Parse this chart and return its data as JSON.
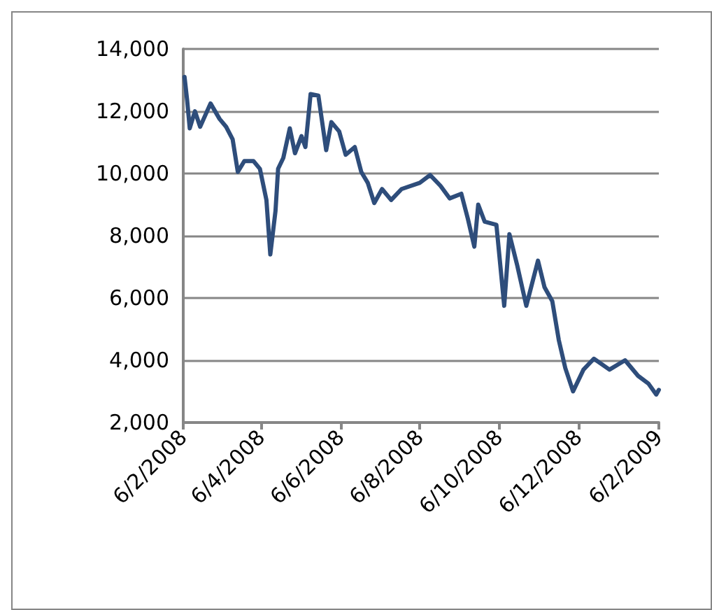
{
  "chart_data": {
    "type": "line",
    "x": [
      "2008-02-07",
      "2008-02-09",
      "2008-02-11",
      "2008-02-15",
      "2008-02-19",
      "2008-02-27",
      "2008-03-05",
      "2008-03-10",
      "2008-03-15",
      "2008-03-19",
      "2008-03-24",
      "2008-03-31",
      "2008-04-05",
      "2008-04-10",
      "2008-04-13",
      "2008-04-17",
      "2008-04-19",
      "2008-04-23",
      "2008-04-28",
      "2008-05-02",
      "2008-05-07",
      "2008-05-10",
      "2008-05-14",
      "2008-05-20",
      "2008-05-26",
      "2008-05-30",
      "2008-06-05",
      "2008-06-10",
      "2008-06-17",
      "2008-06-22",
      "2008-06-27",
      "2008-07-02",
      "2008-07-08",
      "2008-07-15",
      "2008-07-23",
      "2008-08-06",
      "2008-08-14",
      "2008-08-22",
      "2008-08-29",
      "2008-09-07",
      "2008-09-12",
      "2008-09-17",
      "2008-09-20",
      "2008-09-25",
      "2008-10-04",
      "2008-10-10",
      "2008-10-14",
      "2008-10-20",
      "2008-10-27",
      "2008-11-05",
      "2008-11-10",
      "2008-11-16",
      "2008-11-21",
      "2008-11-26",
      "2008-12-02",
      "2008-12-10",
      "2008-12-18",
      "2008-12-30",
      "2009-01-11",
      "2009-01-21",
      "2009-01-29",
      "2009-02-04",
      "2009-02-06"
    ],
    "series": [
      {
        "color": "#2e4d7b",
        "values": [
          13100,
          12350,
          11450,
          12000,
          11500,
          12250,
          11750,
          11500,
          11100,
          10050,
          10400,
          10400,
          10150,
          9150,
          7400,
          8800,
          10150,
          10500,
          11450,
          10650,
          11200,
          10850,
          12550,
          12500,
          10750,
          11650,
          11350,
          10600,
          10850,
          10050,
          9700,
          9050,
          9500,
          9150,
          9500,
          9700,
          9950,
          9600,
          9200,
          9350,
          8550,
          7650,
          9000,
          8450,
          8350,
          5750,
          8050,
          7050,
          5750,
          7200,
          6350,
          5900,
          4650,
          3750,
          3000,
          3700,
          4050,
          3700,
          4000,
          3500,
          3250,
          2900,
          3050
        ]
      }
    ],
    "xlim": [
      "2008-02-06",
      "2009-02-06"
    ],
    "xticks": [
      {
        "value": "2008-02-06",
        "label": "6/2/2008"
      },
      {
        "value": "2008-04-06",
        "label": "6/4/2008"
      },
      {
        "value": "2008-06-06",
        "label": "6/6/2008"
      },
      {
        "value": "2008-08-06",
        "label": "6/8/2008"
      },
      {
        "value": "2008-10-06",
        "label": "6/10/2008"
      },
      {
        "value": "2008-12-06",
        "label": "6/12/2008"
      },
      {
        "value": "2009-02-06",
        "label": "6/2/2009"
      }
    ],
    "ylim": [
      2000,
      14000
    ],
    "yticks": [
      {
        "value": 2000,
        "label": "2,000"
      },
      {
        "value": 4000,
        "label": "4,000"
      },
      {
        "value": 6000,
        "label": "6,000"
      },
      {
        "value": 8000,
        "label": "8,000"
      },
      {
        "value": 10000,
        "label": "10,000"
      },
      {
        "value": 12000,
        "label": "12,000"
      },
      {
        "value": 14000,
        "label": "14,000"
      }
    ],
    "grid": "y",
    "marker": "none",
    "line_style": "solid"
  }
}
